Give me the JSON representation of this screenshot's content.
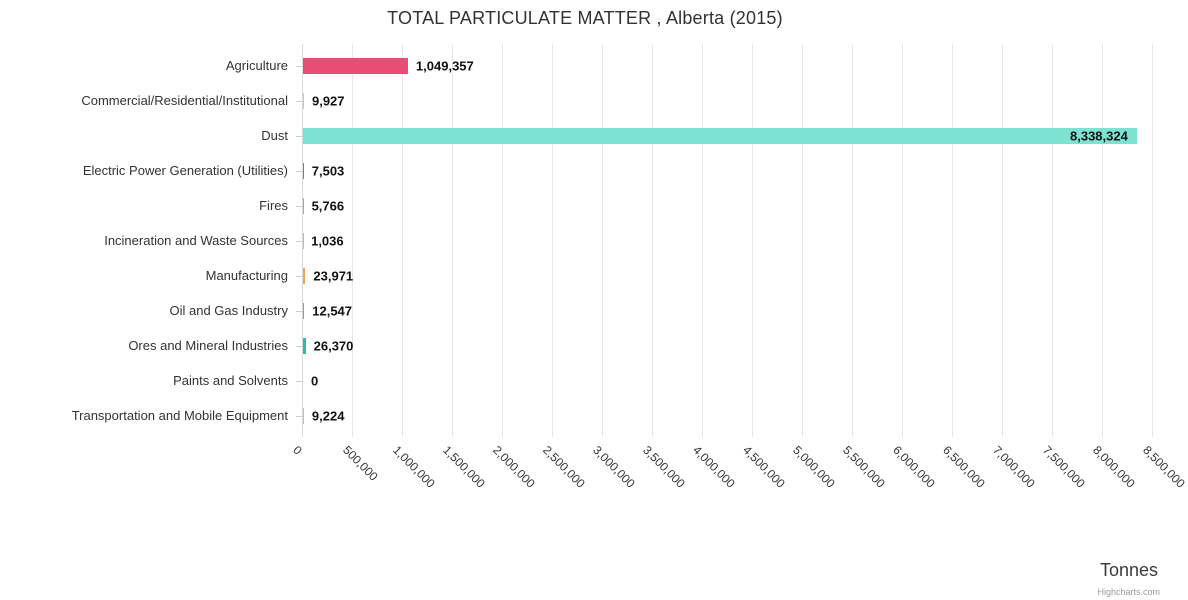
{
  "chart_data": {
    "type": "bar",
    "orientation": "horizontal",
    "title": "TOTAL PARTICULATE MATTER , Alberta (2015)",
    "xlabel": "Tonnes",
    "ylabel": "",
    "credit": "Highcharts.com",
    "grid": true,
    "legend": "none",
    "xlim": [
      0,
      8500000
    ],
    "categories": [
      "Agriculture",
      "Commercial/Residential/Institutional",
      "Dust",
      "Electric Power Generation (Utilities)",
      "Fires",
      "Incineration and Waste Sources",
      "Manufacturing",
      "Oil and Gas Industry",
      "Ores and Mineral Industries",
      "Paints and Solvents",
      "Transportation and Mobile Equipment"
    ],
    "values": [
      1049357,
      9927,
      8338324,
      7503,
      5766,
      1036,
      23971,
      12547,
      26370,
      0,
      9224
    ],
    "value_labels": [
      "1,049,357",
      "9,927",
      "8,338,324",
      "7,503",
      "5,766",
      "1,036",
      "23,971",
      "12,547",
      "26,370",
      "0",
      "9,224"
    ],
    "colors": [
      "#e84d76",
      "#f9c268",
      "#7de2d1",
      "#8a6fd1",
      "#f28c6a",
      "#9fd86b",
      "#f5a45c",
      "#6aa7e0",
      "#2fb9b0",
      "#c38cd4",
      "#7fd4f0"
    ],
    "x_ticks": [
      "0",
      "500,000",
      "1,000,000",
      "1,500,000",
      "2,000,000",
      "2,500,000",
      "3,000,000",
      "3,500,000",
      "4,000,000",
      "4,500,000",
      "5,000,000",
      "5,500,000",
      "6,000,000",
      "6,500,000",
      "7,000,000",
      "7,500,000",
      "8,000,000",
      "8,500,000"
    ]
  }
}
